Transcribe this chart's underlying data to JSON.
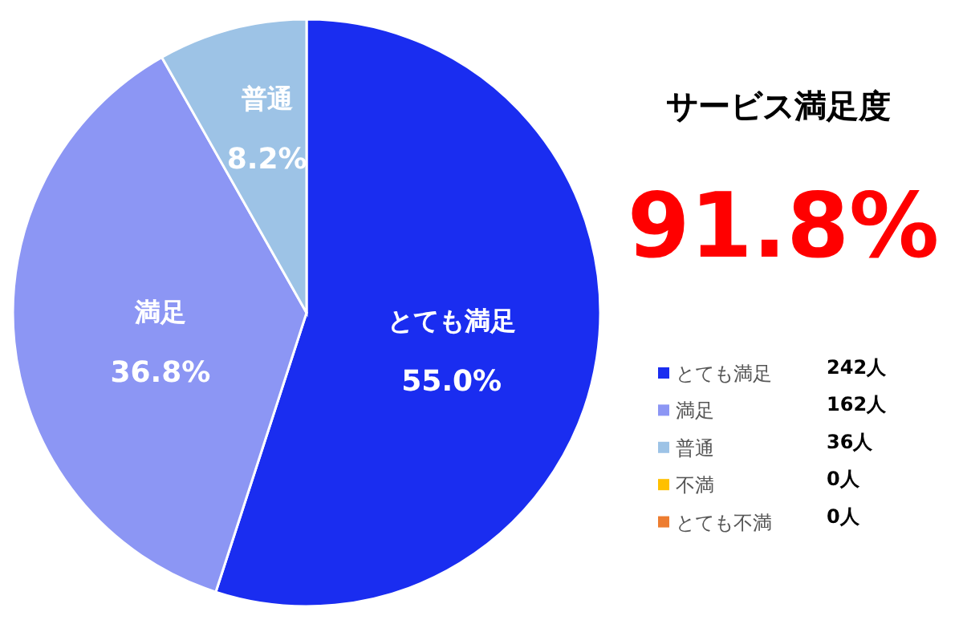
{
  "chart_data": {
    "type": "pie",
    "title": "サービス満足度",
    "subtitle": "91.8%",
    "categories": [
      "とても満足",
      "満足",
      "普通",
      "不満",
      "とても不満"
    ],
    "values": [
      55.0,
      36.8,
      8.2,
      0,
      0
    ],
    "value_labels": [
      "55.0%",
      "36.8%",
      "8.2%",
      null,
      null
    ],
    "colors": [
      "#1a2df0",
      "#8c96f4",
      "#9dc3e6",
      "#ffc000",
      "#ed7d31"
    ],
    "annotations": [
      "242人",
      "162人",
      "36人",
      "0人",
      "0人"
    ],
    "legend": "right"
  }
}
